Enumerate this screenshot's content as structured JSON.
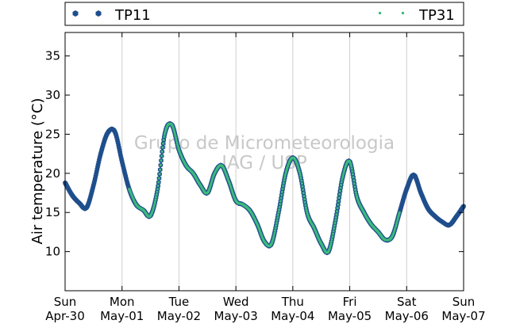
{
  "chart_data": {
    "type": "scatter",
    "ylabel": "Air temperature (°C)",
    "ylim": [
      5,
      38
    ],
    "yticks": [
      10,
      15,
      20,
      25,
      30,
      35
    ],
    "xlim": [
      "2017-04-30",
      "2017-05-07"
    ],
    "grid": "vertical",
    "legend_position": "top, outside plot",
    "watermark": [
      "Grupo de Micrometeorologia",
      "IAG / USP"
    ],
    "x_ticks": [
      {
        "day": "Sun",
        "date": "Apr-30"
      },
      {
        "day": "Mon",
        "date": "May-01"
      },
      {
        "day": "Tue",
        "date": "May-02"
      },
      {
        "day": "Wed",
        "date": "May-03"
      },
      {
        "day": "Thu",
        "date": "May-04"
      },
      {
        "day": "Fri",
        "date": "May-05"
      },
      {
        "day": "Sat",
        "date": "May-06"
      },
      {
        "day": "Sun",
        "date": "May-07"
      }
    ],
    "series": [
      {
        "name": "TP11",
        "color": "#1f4e8c",
        "marker": "hexagon",
        "x": [
          "2017-04-30 00:00",
          "2017-04-30 03:00",
          "2017-04-30 06:00",
          "2017-04-30 09:00",
          "2017-04-30 12:00",
          "2017-04-30 15:00",
          "2017-04-30 18:00",
          "2017-04-30 21:00",
          "2017-05-01 00:00",
          "2017-05-01 03:00",
          "2017-05-01 06:00",
          "2017-05-01 09:00",
          "2017-05-01 12:00",
          "2017-05-01 15:00",
          "2017-05-01 18:00",
          "2017-05-01 21:00",
          "2017-05-02 00:00",
          "2017-05-02 03:00",
          "2017-05-02 06:00",
          "2017-05-02 09:00",
          "2017-05-02 12:00",
          "2017-05-02 15:00",
          "2017-05-02 18:00",
          "2017-05-02 21:00",
          "2017-05-03 00:00",
          "2017-05-03 03:00",
          "2017-05-03 06:00",
          "2017-05-03 09:00",
          "2017-05-03 12:00",
          "2017-05-03 15:00",
          "2017-05-03 18:00",
          "2017-05-03 21:00",
          "2017-05-04 00:00",
          "2017-05-04 03:00",
          "2017-05-04 06:00",
          "2017-05-04 09:00",
          "2017-05-04 12:00",
          "2017-05-04 15:00",
          "2017-05-04 18:00",
          "2017-05-04 21:00",
          "2017-05-05 00:00",
          "2017-05-05 03:00",
          "2017-05-05 06:00",
          "2017-05-05 09:00",
          "2017-05-05 12:00",
          "2017-05-05 15:00",
          "2017-05-05 18:00",
          "2017-05-05 21:00",
          "2017-05-06 00:00",
          "2017-05-06 03:00",
          "2017-05-06 06:00",
          "2017-05-06 09:00",
          "2017-05-06 12:00",
          "2017-05-06 15:00",
          "2017-05-06 18:00",
          "2017-05-06 21:00",
          "2017-05-07 00:00"
        ],
        "y": [
          18.8,
          17.2,
          16.2,
          15.6,
          18.5,
          22.5,
          25.2,
          25.3,
          21.5,
          18.0,
          16.0,
          15.3,
          14.6,
          18.0,
          25.0,
          26.2,
          23.0,
          21.0,
          20.0,
          18.5,
          17.5,
          20.0,
          21.0,
          19.0,
          16.5,
          16.0,
          15.2,
          13.5,
          11.3,
          11.0,
          15.0,
          20.0,
          22.0,
          20.0,
          15.0,
          13.0,
          11.0,
          10.0,
          14.0,
          19.5,
          21.5,
          17.0,
          15.0,
          13.5,
          12.5,
          11.5,
          12.0,
          15.0,
          18.0,
          19.8,
          17.5,
          15.5,
          14.5,
          13.8,
          13.4,
          14.5,
          15.8
        ]
      },
      {
        "name": "TP31",
        "color": "#3dbb7c",
        "marker": "point",
        "x": [
          "2017-05-01 03:00",
          "2017-05-01 06:00",
          "2017-05-01 09:00",
          "2017-05-01 12:00",
          "2017-05-01 15:00",
          "2017-05-01 18:00",
          "2017-05-01 21:00",
          "2017-05-02 00:00",
          "2017-05-02 03:00",
          "2017-05-02 06:00",
          "2017-05-02 09:00",
          "2017-05-02 12:00",
          "2017-05-02 15:00",
          "2017-05-02 18:00",
          "2017-05-02 21:00",
          "2017-05-03 00:00",
          "2017-05-03 03:00",
          "2017-05-03 06:00",
          "2017-05-03 09:00",
          "2017-05-03 12:00",
          "2017-05-03 15:00",
          "2017-05-03 18:00",
          "2017-05-03 21:00",
          "2017-05-04 00:00",
          "2017-05-04 03:00",
          "2017-05-04 06:00",
          "2017-05-04 09:00",
          "2017-05-04 12:00",
          "2017-05-04 15:00",
          "2017-05-04 18:00",
          "2017-05-04 21:00",
          "2017-05-05 00:00",
          "2017-05-05 03:00",
          "2017-05-05 06:00",
          "2017-05-05 09:00",
          "2017-05-05 12:00",
          "2017-05-05 15:00",
          "2017-05-05 18:00",
          "2017-05-05 21:00"
        ],
        "y": [
          18.0,
          16.0,
          15.3,
          14.6,
          18.0,
          25.0,
          26.2,
          23.0,
          21.0,
          20.0,
          18.5,
          17.5,
          20.0,
          21.0,
          19.0,
          16.5,
          16.0,
          15.2,
          13.5,
          11.3,
          11.0,
          15.0,
          20.0,
          22.0,
          20.0,
          15.0,
          13.0,
          11.0,
          10.0,
          14.0,
          19.5,
          21.5,
          17.0,
          15.0,
          13.5,
          12.5,
          11.5,
          12.0,
          15.0
        ]
      }
    ]
  }
}
